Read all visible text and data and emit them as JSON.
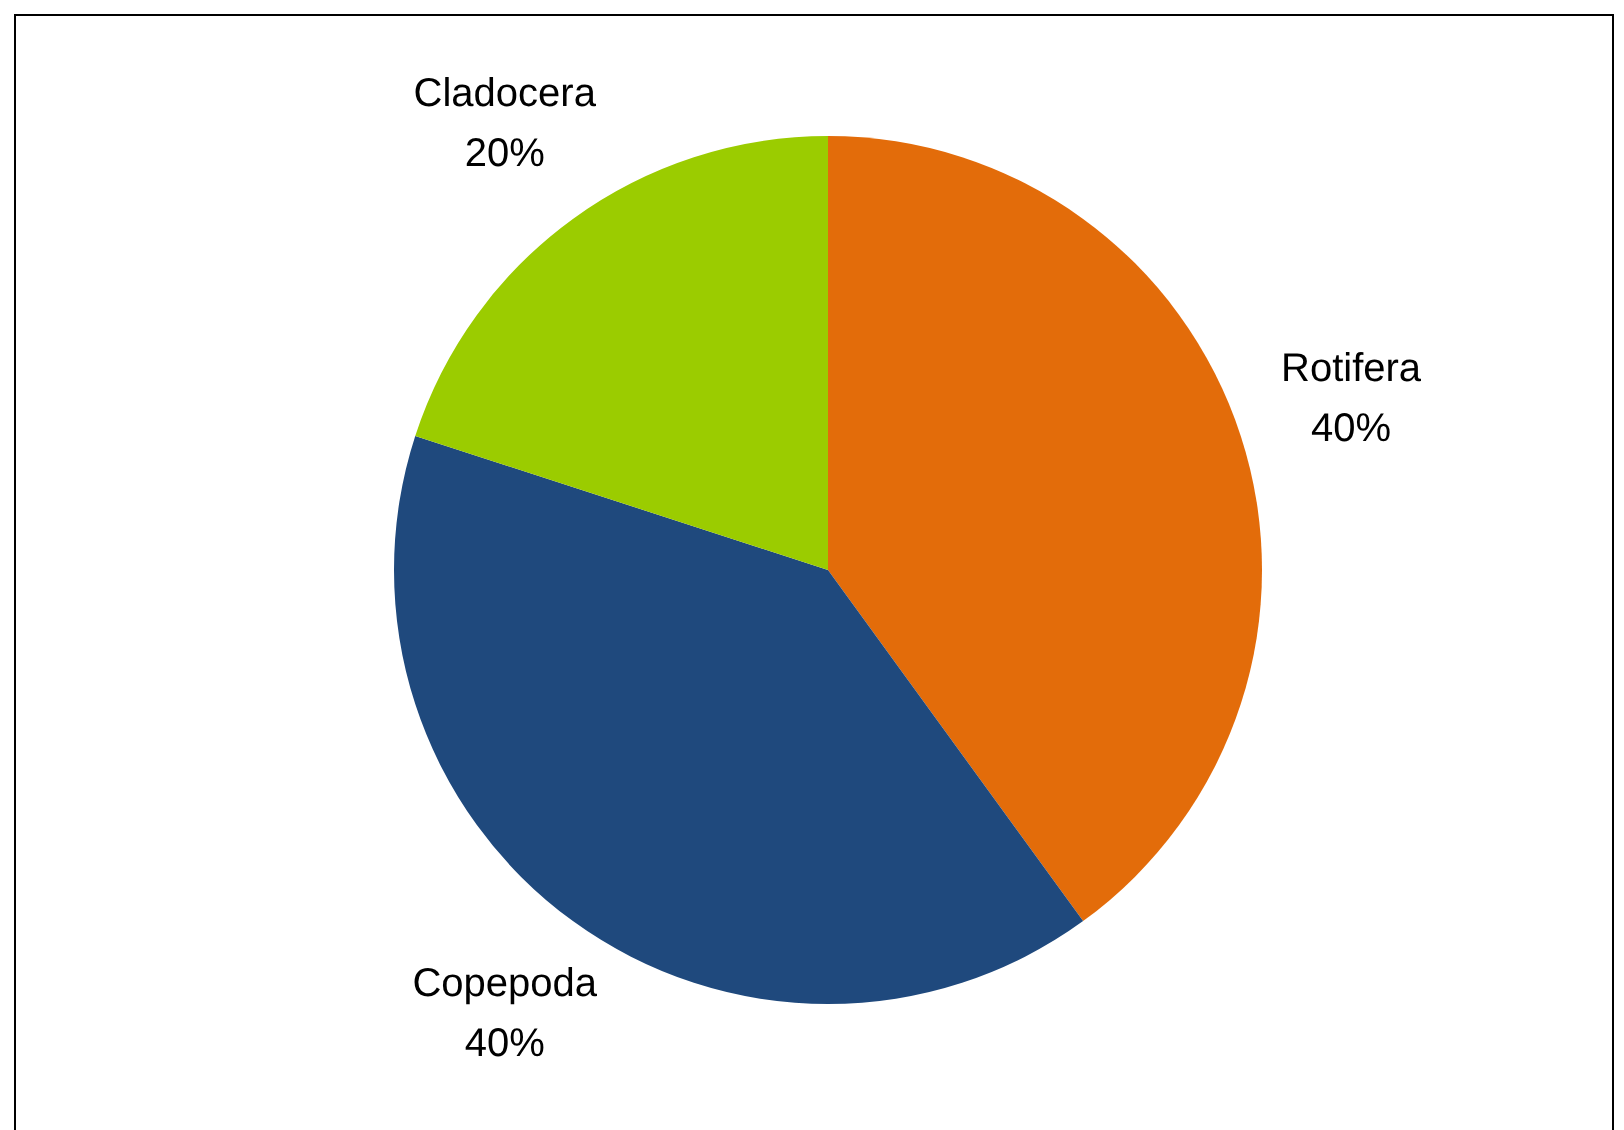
{
  "chart_data": {
    "type": "pie",
    "categories": [
      "Rotifera",
      "Copepoda",
      "Cladocera"
    ],
    "values": [
      40,
      40,
      20
    ],
    "value_labels": [
      "40%",
      "40%",
      "20%"
    ],
    "colors": [
      "#e36c0a",
      "#1f497d",
      "#9bcc00"
    ],
    "legend": false
  }
}
